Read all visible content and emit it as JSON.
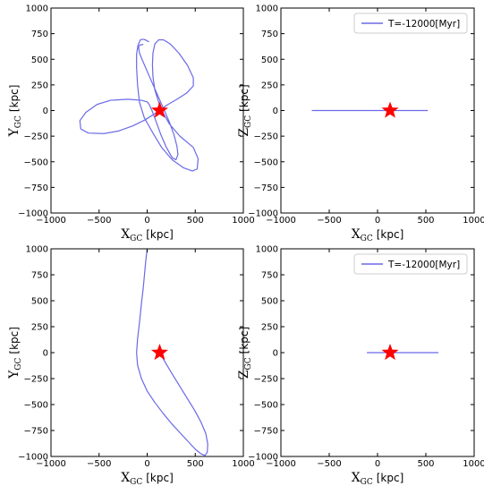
{
  "chart_data": [
    {
      "type": "line",
      "xlabel": {
        "main": "X",
        "sub": "GC",
        "unit": "[kpc]"
      },
      "ylabel": {
        "main": "Y",
        "sub": "GC",
        "unit": "[kpc]"
      },
      "xlim": [
        -1000,
        1000
      ],
      "ylim": [
        -1000,
        1000
      ],
      "xticks": [
        -1000,
        -500,
        0,
        500,
        1000
      ],
      "yticks": [
        -1000,
        -750,
        -500,
        -250,
        0,
        250,
        500,
        750,
        1000
      ],
      "legend": null,
      "line_color": "#6a6ae6",
      "star": {
        "x": 130,
        "y": 0,
        "color": "#ff0000"
      },
      "series": [
        {
          "x": [
            -40,
            -75,
            -90,
            -80,
            -40,
            20,
            90,
            160,
            230,
            280,
            310,
            320,
            300,
            260,
            200,
            140,
            90,
            50,
            20,
            0,
            -60,
            -200,
            -380,
            -520,
            -640,
            -700,
            -690,
            -610,
            -450,
            -300,
            -150,
            -20,
            80,
            200,
            310,
            410,
            480,
            480,
            420,
            330,
            240,
            170,
            120,
            80,
            60,
            55,
            60,
            80,
            120,
            170,
            230,
            340,
            480,
            530,
            520,
            470,
            380,
            260,
            150,
            60,
            -30,
            -80,
            -100,
            -110,
            -110,
            -95,
            -70,
            -50,
            -40,
            -20,
            -10,
            0,
            10,
            20
          ],
          "y": [
            645,
            640,
            620,
            560,
            470,
            340,
            190,
            40,
            -110,
            -240,
            -350,
            -430,
            -480,
            -460,
            -360,
            -230,
            -100,
            0,
            60,
            85,
            100,
            110,
            100,
            60,
            -20,
            -100,
            -180,
            -220,
            -225,
            -200,
            -150,
            -90,
            -30,
            50,
            110,
            170,
            240,
            320,
            440,
            560,
            650,
            690,
            690,
            650,
            560,
            450,
            330,
            200,
            80,
            -30,
            -130,
            -250,
            -360,
            -470,
            -570,
            -590,
            -560,
            -480,
            -360,
            -220,
            -70,
            80,
            250,
            420,
            550,
            640,
            690,
            695,
            695,
            690,
            685,
            680,
            675,
            670
          ]
        }
      ]
    },
    {
      "type": "line",
      "xlabel": {
        "main": "X",
        "sub": "GC",
        "unit": "[kpc]"
      },
      "ylabel": {
        "main": "Z",
        "sub": "GC",
        "unit": "[kpc]"
      },
      "xlim": [
        -1000,
        1000
      ],
      "ylim": [
        -1000,
        1000
      ],
      "xticks": [
        -1000,
        -500,
        0,
        500,
        1000
      ],
      "yticks": [
        -1000,
        -750,
        -500,
        -250,
        0,
        250,
        500,
        750,
        1000
      ],
      "legend": {
        "label": "T=-12000[Myr]",
        "position": "top-right"
      },
      "line_color": "#6a6ae6",
      "star": {
        "x": 130,
        "y": 0,
        "color": "#ff0000"
      },
      "series": [
        {
          "x": [
            -680,
            520
          ],
          "y": [
            0,
            0
          ]
        }
      ]
    },
    {
      "type": "line",
      "xlabel": {
        "main": "X",
        "sub": "GC",
        "unit": "[kpc]"
      },
      "ylabel": {
        "main": "Y",
        "sub": "GC",
        "unit": "[kpc]"
      },
      "xlim": [
        -1000,
        1000
      ],
      "ylim": [
        -1000,
        1000
      ],
      "xticks": [
        -1000,
        -500,
        0,
        500,
        1000
      ],
      "yticks": [
        -1000,
        -750,
        -500,
        -250,
        0,
        250,
        500,
        750,
        1000
      ],
      "legend": null,
      "line_color": "#6a6ae6",
      "star": {
        "x": 130,
        "y": 0,
        "color": "#ff0000"
      },
      "series": [
        {
          "x": [
            130,
            180,
            250,
            330,
            410,
            490,
            560,
            610,
            630,
            625,
            600,
            560,
            500,
            430,
            350,
            260,
            170,
            80,
            0,
            -60,
            -100,
            -110,
            -100,
            -80,
            -60,
            -40,
            -25,
            -15,
            -5,
            0
          ],
          "y": [
            0,
            -80,
            -190,
            -310,
            -430,
            -550,
            -670,
            -780,
            -880,
            -960,
            -990,
            -975,
            -930,
            -860,
            -780,
            -690,
            -590,
            -480,
            -370,
            -250,
            -120,
            0,
            130,
            290,
            470,
            630,
            780,
            880,
            960,
            1000
          ]
        }
      ]
    },
    {
      "type": "line",
      "xlabel": {
        "main": "X",
        "sub": "GC",
        "unit": "[kpc]"
      },
      "ylabel": {
        "main": "Z",
        "sub": "GC",
        "unit": "[kpc]"
      },
      "xlim": [
        -1000,
        1000
      ],
      "ylim": [
        -1000,
        1000
      ],
      "xticks": [
        -1000,
        -500,
        0,
        500,
        1000
      ],
      "yticks": [
        -1000,
        -750,
        -500,
        -250,
        0,
        250,
        500,
        750,
        1000
      ],
      "legend": {
        "label": "T=-12000[Myr]",
        "position": "top-right"
      },
      "line_color": "#6a6ae6",
      "star": {
        "x": 130,
        "y": 0,
        "color": "#ff0000"
      },
      "series": [
        {
          "x": [
            -110,
            630
          ],
          "y": [
            0,
            0
          ]
        }
      ]
    }
  ]
}
